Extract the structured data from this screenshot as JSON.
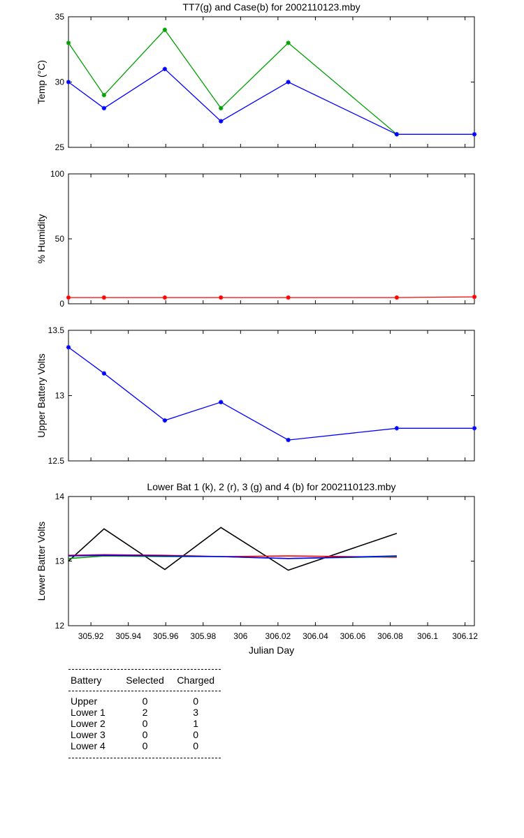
{
  "chart_data": [
    {
      "type": "line",
      "title": "TT7(g) and Case(b) for 2002110123.mby",
      "xlabel": "",
      "ylabel": "Temp  (°C)",
      "xlim": [
        305.908,
        306.125
      ],
      "ylim": [
        25,
        35
      ],
      "yticks": [
        "25",
        "30",
        "35"
      ],
      "x_tick_values": [
        305.92,
        305.94,
        305.96,
        305.98,
        306.0,
        306.02,
        306.04,
        306.06,
        306.08,
        306.1,
        306.12
      ],
      "markers": true,
      "series": [
        {
          "color": "#00a000",
          "x": [
            305.908,
            305.927,
            305.9595,
            305.9895,
            306.0255,
            306.0835
          ],
          "y": [
            33,
            29,
            34,
            28,
            33,
            26
          ]
        },
        {
          "color": "#0000ff",
          "x": [
            305.908,
            305.927,
            305.9595,
            305.9895,
            306.0255,
            306.0835,
            306.125
          ],
          "y": [
            30,
            28,
            31,
            27,
            30,
            26,
            26
          ]
        }
      ]
    },
    {
      "type": "line",
      "title": "",
      "xlabel": "",
      "ylabel": "% Humidity",
      "xlim": [
        305.908,
        306.125
      ],
      "ylim": [
        0,
        100
      ],
      "yticks": [
        "0",
        "50",
        "100"
      ],
      "x_tick_values": [
        305.92,
        305.94,
        305.96,
        305.98,
        306.0,
        306.02,
        306.04,
        306.06,
        306.08,
        306.1,
        306.12
      ],
      "markers": true,
      "series": [
        {
          "color": "#ff0000",
          "x": [
            305.908,
            305.927,
            305.9595,
            305.9895,
            306.0255,
            306.0835,
            306.125
          ],
          "y": [
            4.8,
            4.8,
            4.8,
            4.8,
            4.8,
            4.8,
            5.3
          ]
        }
      ]
    },
    {
      "type": "line",
      "title": "",
      "xlabel": "",
      "ylabel": "Upper Battery Volts",
      "xlim": [
        305.908,
        306.125
      ],
      "ylim": [
        12.5,
        13.5
      ],
      "yticks": [
        "12.5",
        "13",
        "13.5"
      ],
      "x_tick_values": [
        305.92,
        305.94,
        305.96,
        305.98,
        306.0,
        306.02,
        306.04,
        306.06,
        306.08,
        306.1,
        306.12
      ],
      "markers": true,
      "series": [
        {
          "color": "#0000ff",
          "x": [
            305.908,
            305.927,
            305.9595,
            305.9895,
            306.0255,
            306.0835,
            306.125
          ],
          "y": [
            13.37,
            13.17,
            12.81,
            12.95,
            12.66,
            12.75,
            12.75
          ]
        }
      ]
    },
    {
      "type": "line",
      "title": "Lower Bat 1 (k), 2 (r), 3 (g) and 4 (b) for 2002110123.mby",
      "xlabel": "Julian Day",
      "ylabel": "Lower Batter Volts",
      "xlim": [
        305.908,
        306.125
      ],
      "ylim": [
        12,
        14
      ],
      "yticks": [
        "12",
        "13",
        "14"
      ],
      "x_tick_values": [
        305.92,
        305.94,
        305.96,
        305.98,
        306.0,
        306.02,
        306.04,
        306.06,
        306.08,
        306.1,
        306.12
      ],
      "xticks": [
        "305.92",
        "305.94",
        "305.96",
        "305.98",
        "306",
        "306.02",
        "306.04",
        "306.06",
        "306.08",
        "306.1",
        "306.12"
      ],
      "markers": false,
      "series": [
        {
          "color": "#000000",
          "x": [
            305.908,
            305.927,
            305.9595,
            305.9895,
            306.0255,
            306.0835
          ],
          "y": [
            13.0,
            13.5,
            12.87,
            13.52,
            12.86,
            13.43
          ]
        },
        {
          "color": "#ff0000",
          "x": [
            305.908,
            305.927,
            305.9595,
            305.9895,
            306.0255,
            306.0835
          ],
          "y": [
            13.09,
            13.1,
            13.09,
            13.07,
            13.08,
            13.06
          ]
        },
        {
          "color": "#00a000",
          "x": [
            305.908,
            305.927,
            305.9595,
            305.9895,
            306.0255,
            306.0835
          ],
          "y": [
            13.04,
            13.08,
            13.07,
            13.07,
            13.04,
            13.07
          ]
        },
        {
          "color": "#0000ff",
          "x": [
            305.908,
            305.927,
            305.9595,
            305.9895,
            306.0255,
            306.0835
          ],
          "y": [
            13.08,
            13.09,
            13.08,
            13.07,
            13.04,
            13.08
          ]
        }
      ]
    }
  ],
  "battery_table": {
    "headers": [
      "Battery",
      "Selected",
      "Charged"
    ],
    "rows": [
      [
        "Upper",
        "0",
        "0"
      ],
      [
        "Lower 1",
        "2",
        "3"
      ],
      [
        "Lower 2",
        "0",
        "1"
      ],
      [
        "Lower 3",
        "0",
        "0"
      ],
      [
        "Lower 4",
        "0",
        "0"
      ]
    ]
  }
}
